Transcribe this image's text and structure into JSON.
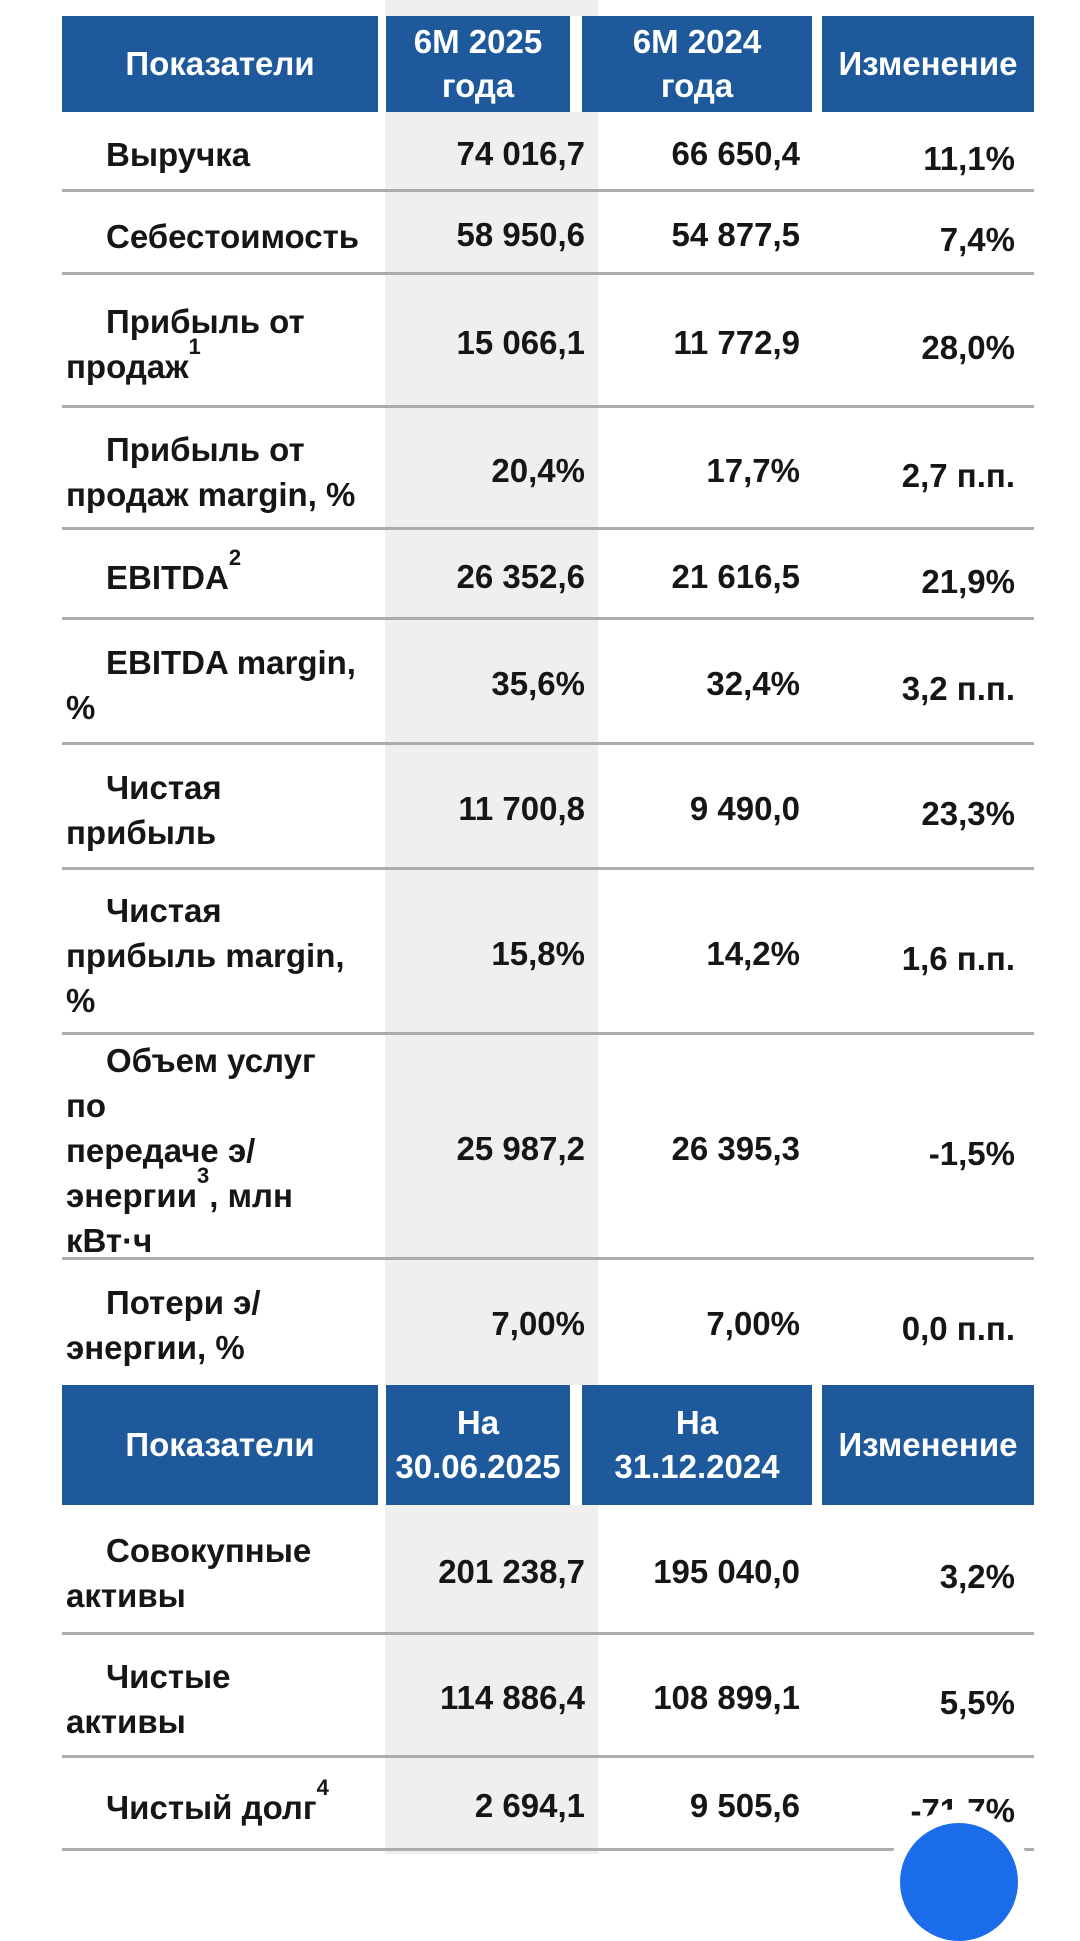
{
  "colors": {
    "header_bg": "#1e5a9b",
    "header_text": "#ffffff",
    "column_highlight": "#f0efef",
    "row_divider": "#acacac",
    "text": "#161616",
    "fab_blue": "#1a6ceb"
  },
  "table_period": {
    "headers": [
      "Показатели",
      "6М 2025 года",
      "6М 2024 года",
      "Изменение"
    ],
    "rows": [
      {
        "label": [
          {
            "t": "Выручка"
          }
        ],
        "v1": "74 016,7",
        "v2": "66 650,4",
        "change": "11,1%"
      },
      {
        "label": [
          {
            "t": "Себестоимость"
          }
        ],
        "v1": "58 950,6",
        "v2": "54 877,5",
        "change": "7,4%"
      },
      {
        "label": [
          {
            "t": "Прибыль от"
          },
          {
            "br": true
          },
          {
            "t": "продаж"
          },
          {
            "sup": "1"
          }
        ],
        "v1": "15 066,1",
        "v2": "11 772,9",
        "change": "28,0%"
      },
      {
        "label": [
          {
            "t": "Прибыль от"
          },
          {
            "br": true
          },
          {
            "t": "продаж margin, %"
          }
        ],
        "v1": "20,4%",
        "v2": "17,7%",
        "change": "2,7 п.п."
      },
      {
        "label": [
          {
            "t": "EBITDA"
          },
          {
            "sup": "2"
          }
        ],
        "v1": "26 352,6",
        "v2": "21 616,5",
        "change": "21,9%"
      },
      {
        "label": [
          {
            "t": "EBITDA margin,"
          },
          {
            "br": true
          },
          {
            "t": "%"
          }
        ],
        "v1": "35,6%",
        "v2": "32,4%",
        "change": "3,2 п.п."
      },
      {
        "label": [
          {
            "t": "Чистая"
          },
          {
            "br": true
          },
          {
            "t": "прибыль"
          }
        ],
        "v1": "11 700,8",
        "v2": "9 490,0",
        "change": "23,3%"
      },
      {
        "label": [
          {
            "t": "Чистая"
          },
          {
            "br": true
          },
          {
            "t": "прибыль margin,"
          },
          {
            "br": true
          },
          {
            "t": "%"
          }
        ],
        "v1": "15,8%",
        "v2": "14,2%",
        "change": "1,6 п.п."
      },
      {
        "label": [
          {
            "t": "Объем услуг по"
          },
          {
            "br": true
          },
          {
            "t": "передаче э/"
          },
          {
            "br": true
          },
          {
            "t": "энергии"
          },
          {
            "sup": "3"
          },
          {
            "t": ", млн"
          },
          {
            "br": true
          },
          {
            "t": "кВт·ч"
          }
        ],
        "v1": "25 987,2",
        "v2": "26 395,3",
        "change": "-1,5%"
      },
      {
        "label": [
          {
            "t": "Потери э/"
          },
          {
            "br": true
          },
          {
            "t": "энергии, %"
          }
        ],
        "v1": "7,00%",
        "v2": "7,00%",
        "change": "0,0 п.п."
      }
    ]
  },
  "table_balance": {
    "headers": [
      "Показатели",
      "На 30.06.2025",
      "На 31.12.2024",
      "Изменение"
    ],
    "rows": [
      {
        "label": [
          {
            "t": "Совокупные"
          },
          {
            "br": true
          },
          {
            "t": "активы"
          }
        ],
        "v1": "201 238,7",
        "v2": "195 040,0",
        "change": "3,2%"
      },
      {
        "label": [
          {
            "t": "Чистые"
          },
          {
            "br": true
          },
          {
            "t": "активы"
          }
        ],
        "v1": "114 886,4",
        "v2": "108 899,1",
        "change": "5,5%"
      },
      {
        "label": [
          {
            "t": "Чистый долг"
          },
          {
            "sup": "4"
          }
        ],
        "v1": "2 694,1",
        "v2": "9 505,6",
        "change": "-71,7%"
      }
    ]
  }
}
